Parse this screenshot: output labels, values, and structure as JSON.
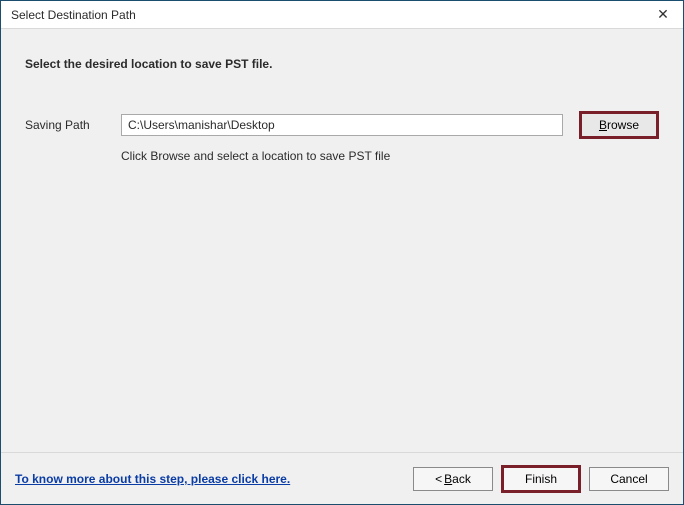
{
  "window": {
    "title": "Select Destination Path"
  },
  "instruction": "Select the desired location to save PST file.",
  "row": {
    "label": "Saving Path",
    "value": "C:\\Users\\manishar\\Desktop",
    "browse": "Browse",
    "hint": "Click Browse and select a location to save PST file"
  },
  "footer": {
    "help": "To know more about this step, please click here.",
    "back_prefix": "< ",
    "back": "Back",
    "finish": "Finish",
    "cancel": "Cancel"
  },
  "colors": {
    "highlight_border": "#781f2a",
    "window_border": "#1a4d6e",
    "link": "#0a3ca5",
    "bg": "#f0f0f0"
  }
}
